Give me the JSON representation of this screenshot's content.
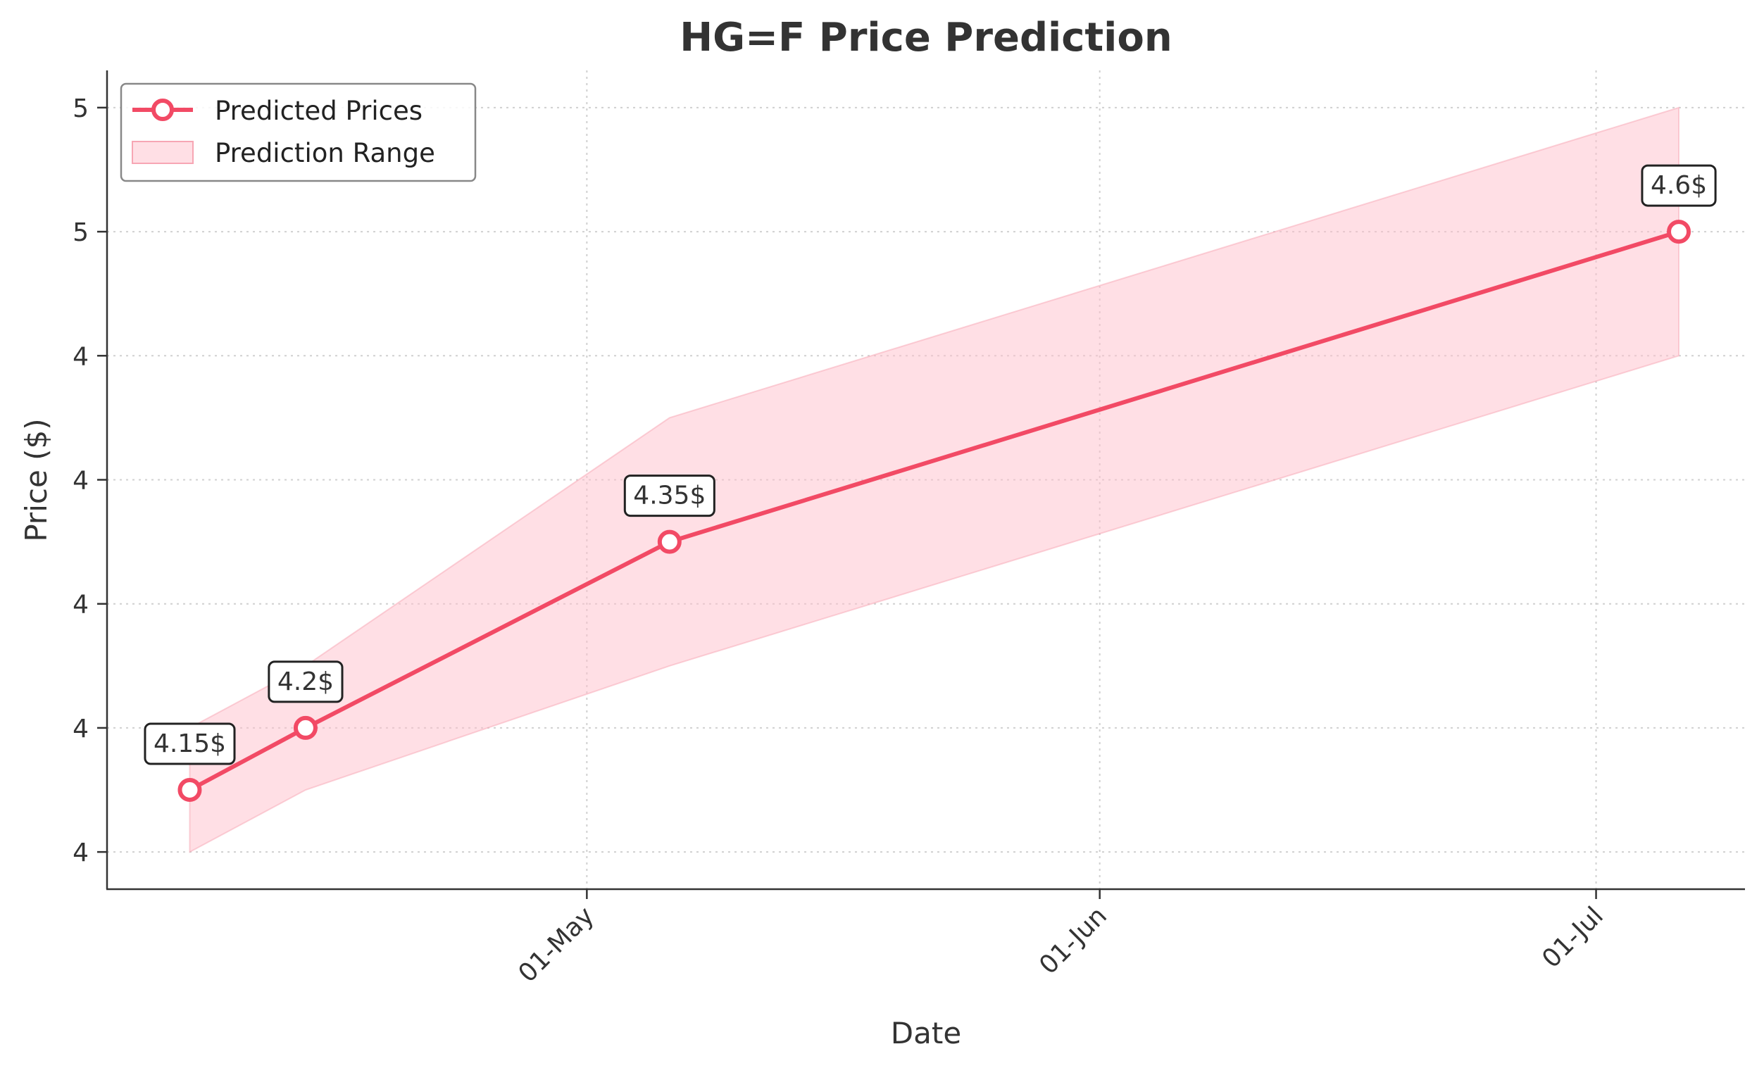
{
  "chart_data": {
    "type": "line",
    "title": "HG=F Price Prediction",
    "xlabel": "Date",
    "ylabel": "Price ($)",
    "x": [
      "2025-04-07",
      "2025-04-14",
      "2025-05-06",
      "2025-07-06"
    ],
    "x_tick_labels": [
      "01-May",
      "01-Jun",
      "01-Jul"
    ],
    "x_tick_dates": [
      "2025-05-01",
      "2025-06-01",
      "2025-07-01"
    ],
    "xlim": [
      "2025-04-02",
      "2025-07-10"
    ],
    "y_tick_labels": [
      "4",
      "4",
      "4",
      "4",
      "4",
      "5",
      "5"
    ],
    "y_tick_values": [
      4.1,
      4.2,
      4.3,
      4.4,
      4.5,
      4.6,
      4.7
    ],
    "ylim": [
      4.07,
      4.73
    ],
    "grid": true,
    "legend_position": "top-left",
    "series": [
      {
        "name": "Predicted Prices",
        "kind": "line",
        "values": [
          4.15,
          4.2,
          4.35,
          4.6
        ],
        "color": "#f24a65"
      },
      {
        "name": "Prediction Range",
        "kind": "band",
        "lower": [
          4.1,
          4.15,
          4.25,
          4.5
        ],
        "upper": [
          4.2,
          4.25,
          4.45,
          4.7
        ],
        "color": "#ffc0cb"
      }
    ],
    "annotations": [
      "4.15$",
      "4.2$",
      "4.35$",
      "4.6$"
    ]
  }
}
